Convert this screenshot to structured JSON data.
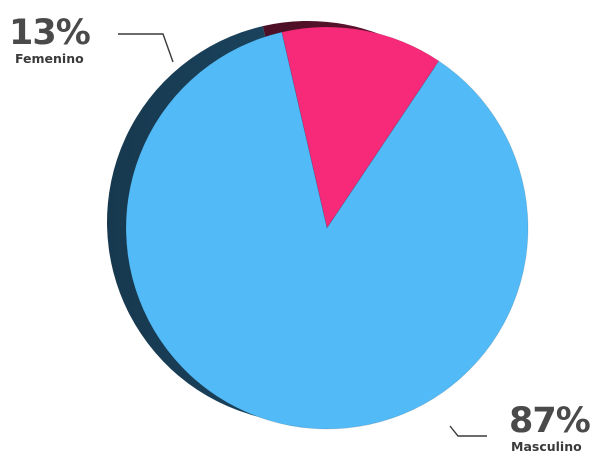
{
  "chart_data": {
    "type": "pie",
    "categories": [
      "Femenino",
      "Masculino"
    ],
    "values": [
      13,
      87
    ],
    "data_labels": [
      "13%",
      "87%"
    ],
    "colors": [
      "#f72a7a",
      "#52baf6"
    ],
    "legend": "none"
  }
}
